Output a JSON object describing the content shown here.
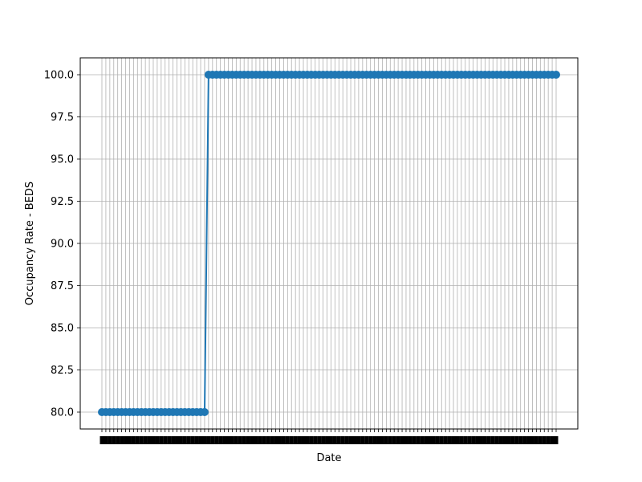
{
  "chart_data": {
    "type": "line",
    "xlabel": "Date",
    "ylabel": "Occupancy Rate - BEDS",
    "ylim": [
      79,
      101
    ],
    "yticks": [
      80.0,
      82.5,
      85.0,
      87.5,
      90.0,
      92.5,
      95.0,
      97.5,
      100.0
    ],
    "ytick_labels": [
      "80.0",
      "82.5",
      "85.0",
      "87.5",
      "90.0",
      "92.5",
      "95.0",
      "97.5",
      "100.0"
    ],
    "x_categories_count": 116,
    "x_tick_labels_legible": false,
    "grid": true,
    "series": [
      {
        "color": "#1f77b4",
        "marker": "circle",
        "values": [
          80,
          80,
          80,
          80,
          80,
          80,
          80,
          80,
          80,
          80,
          80,
          80,
          80,
          80,
          80,
          80,
          80,
          80,
          80,
          80,
          80,
          80,
          80,
          80,
          80,
          80,
          80,
          100,
          100,
          100,
          100,
          100,
          100,
          100,
          100,
          100,
          100,
          100,
          100,
          100,
          100,
          100,
          100,
          100,
          100,
          100,
          100,
          100,
          100,
          100,
          100,
          100,
          100,
          100,
          100,
          100,
          100,
          100,
          100,
          100,
          100,
          100,
          100,
          100,
          100,
          100,
          100,
          100,
          100,
          100,
          100,
          100,
          100,
          100,
          100,
          100,
          100,
          100,
          100,
          100,
          100,
          100,
          100,
          100,
          100,
          100,
          100,
          100,
          100,
          100,
          100,
          100,
          100,
          100,
          100,
          100,
          100,
          100,
          100,
          100,
          100,
          100,
          100,
          100,
          100,
          100,
          100,
          100,
          100,
          100,
          100,
          100,
          100,
          100,
          100,
          100
        ]
      }
    ]
  }
}
